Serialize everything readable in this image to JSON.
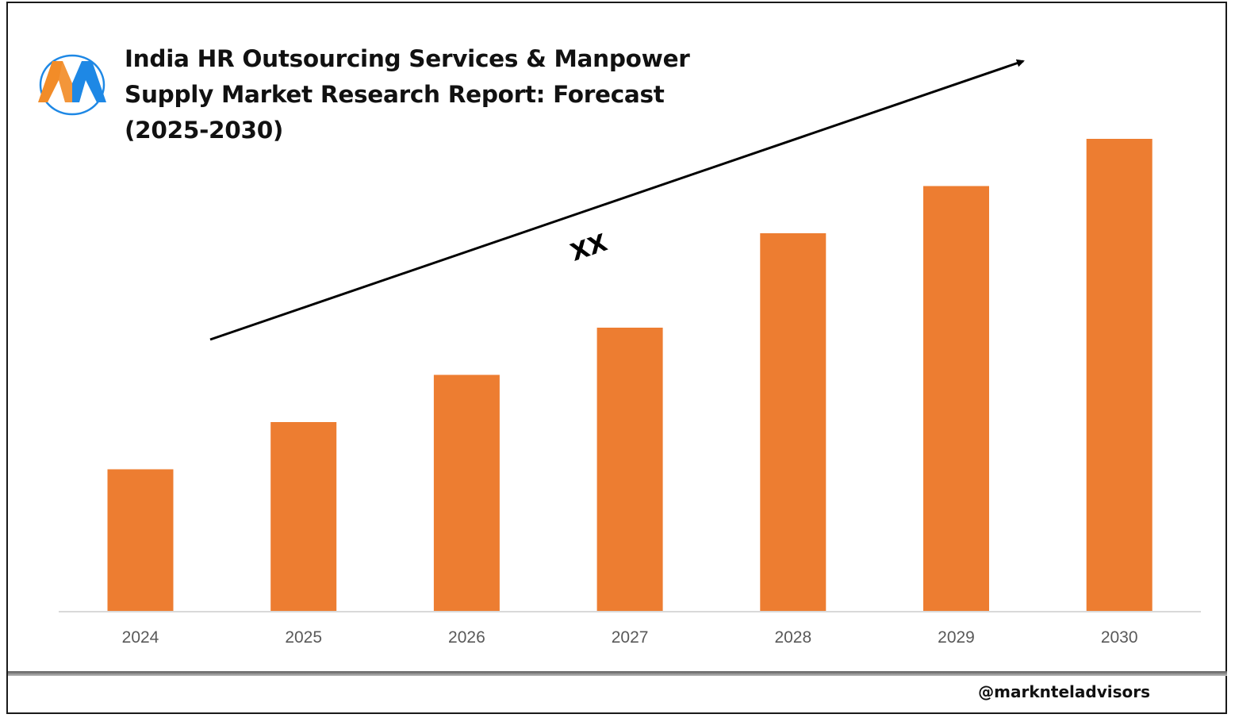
{
  "header": {
    "title_lines": [
      "India HR Outsourcing Services & Manpower",
      "Supply Market Research Report: Forecast",
      "(2025-2030)"
    ]
  },
  "logo": {
    "icon": "marknteladvisors-m-logo-icon",
    "colors": {
      "orange": "#F28C28",
      "blue": "#1E88E5"
    }
  },
  "chart_data": {
    "type": "bar",
    "title": "India HR Outsourcing Services & Manpower Supply Market Research Report: Forecast (2025-2030)",
    "categories": [
      "2024",
      "2025",
      "2026",
      "2027",
      "2028",
      "2029",
      "2030"
    ],
    "series": [
      {
        "values": [
          30,
          40,
          50,
          60,
          80,
          90,
          100
        ]
      }
    ],
    "values_note": "relative bar heights; no value axis printed",
    "ylim": [
      0,
      100
    ],
    "trend_label": "XX",
    "trend_arrow": true,
    "grid": false,
    "legend": "none",
    "colors": {
      "bar": "#ED7D31",
      "baseline": "#D9D9D9",
      "arrow": "#000000"
    }
  },
  "footer": {
    "handle": "@marknteladvisors"
  }
}
